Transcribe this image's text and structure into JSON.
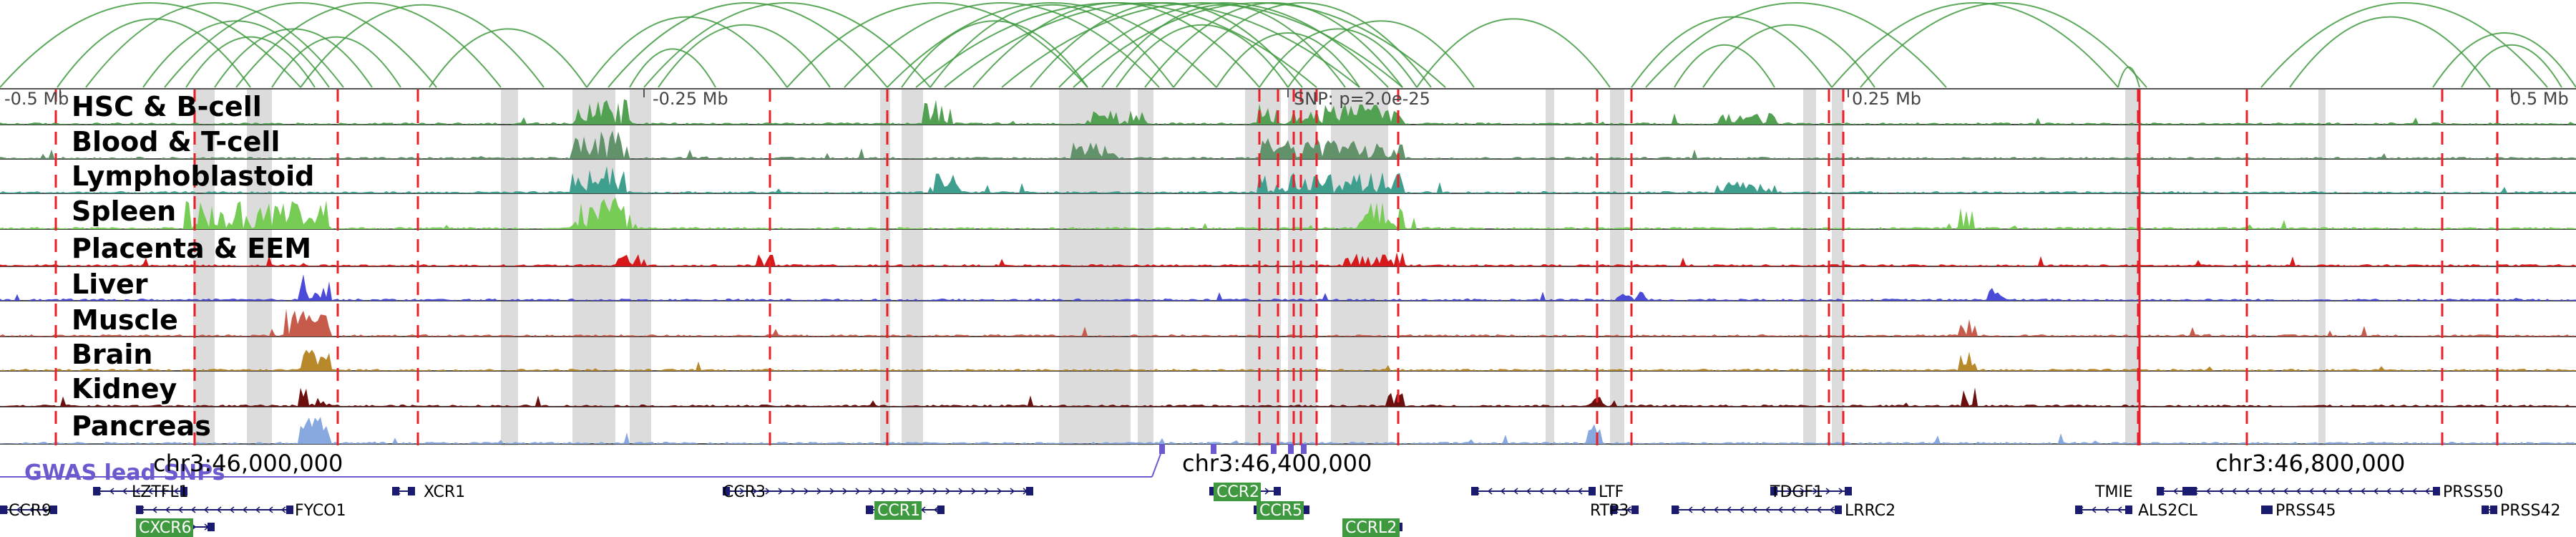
{
  "colors": {
    "loop": "#3f9a3f",
    "snp_line": "#e8202a",
    "gwas": "#6a5acd",
    "gene_box": "#1a1a6e",
    "gene_highlight": "#3f9a3f",
    "shade": "#dcdcdc"
  },
  "scale": {
    "labels": [
      "-0.5 Mb",
      "-0.25 Mb",
      "SNP: p=2.0e-25",
      "0.25 Mb",
      "0.5 Mb"
    ]
  },
  "tracks": [
    {
      "label": "HSC & B-cell",
      "color": "#52a052"
    },
    {
      "label": "Blood & T-cell",
      "color": "#62926a"
    },
    {
      "label": "Lymphoblastoid",
      "color": "#3f9f8f"
    },
    {
      "label": "Spleen",
      "color": "#77cc55"
    },
    {
      "label": "Placenta & EEM",
      "color": "#d7191c"
    },
    {
      "label": "Liver",
      "color": "#4b4bd9"
    },
    {
      "label": "Muscle",
      "color": "#c65b4b"
    },
    {
      "label": "Brain",
      "color": "#b8892a"
    },
    {
      "label": "Kidney",
      "color": "#6b0f0f"
    },
    {
      "label": "Pancreas",
      "color": "#88a8e0"
    }
  ],
  "gwas_label": "GWAS lead SNPs",
  "coordinates": [
    "chr3:46,000,000",
    "chr3:46,400,000",
    "chr3:46,800,000"
  ],
  "genes": [
    {
      "name": "CCR9",
      "highlight": false
    },
    {
      "name": "LZTFL1",
      "highlight": false
    },
    {
      "name": "CXCR6",
      "highlight": true
    },
    {
      "name": "FYCO1",
      "highlight": false
    },
    {
      "name": "XCR1",
      "highlight": false
    },
    {
      "name": "CCR3",
      "highlight": false
    },
    {
      "name": "CCR1",
      "highlight": true
    },
    {
      "name": "CCR2",
      "highlight": true
    },
    {
      "name": "CCR5",
      "highlight": true
    },
    {
      "name": "CCRL2",
      "highlight": true
    },
    {
      "name": "LTF",
      "highlight": false
    },
    {
      "name": "RTP3",
      "highlight": false
    },
    {
      "name": "TDGF1",
      "highlight": false
    },
    {
      "name": "LRRC2",
      "highlight": false
    },
    {
      "name": "TMIE",
      "highlight": false
    },
    {
      "name": "ALS2CL",
      "highlight": false
    },
    {
      "name": "PRSS45",
      "highlight": false
    },
    {
      "name": "PRSS50",
      "highlight": false
    },
    {
      "name": "PRSS42",
      "highlight": false
    }
  ]
}
